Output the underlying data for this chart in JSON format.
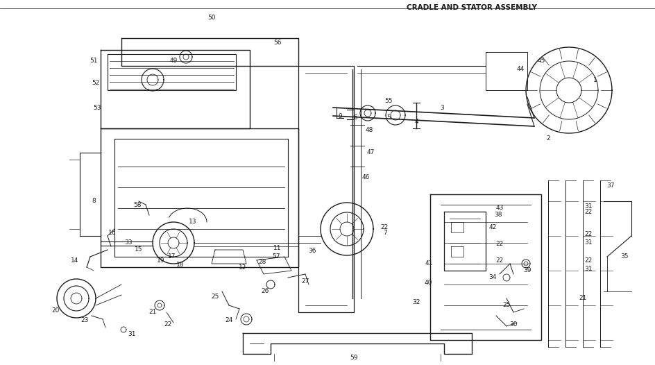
{
  "bg_color": "#ffffff",
  "line_color": "#1a1a1a",
  "fig_width": 9.44,
  "fig_height": 5.26,
  "dpi": 100,
  "header_right": "CRADLE AND STATOR ASSEMBLY",
  "font_size_label": 6.5,
  "font_size_header": 7.5
}
